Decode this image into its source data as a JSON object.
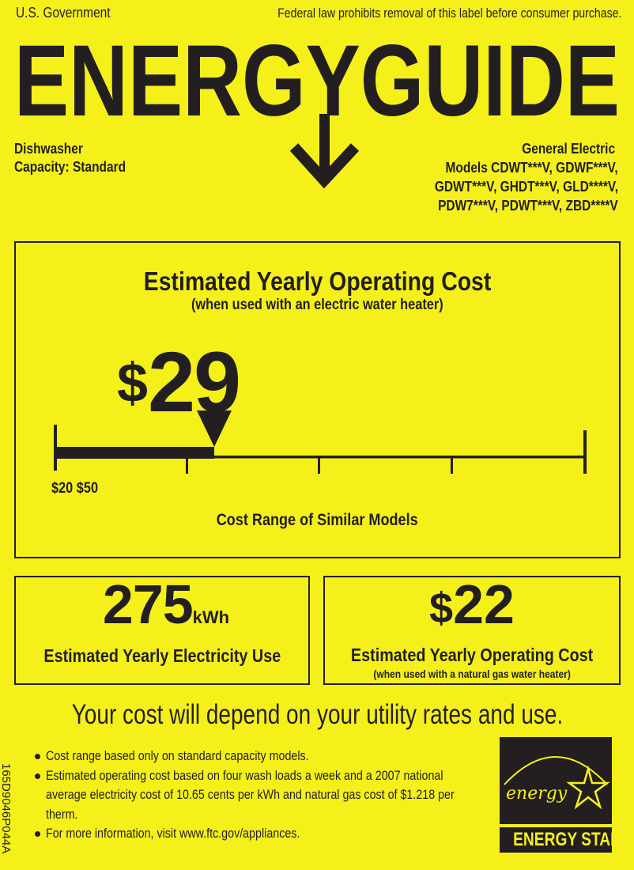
{
  "header": {
    "issuer": "U.S. Government",
    "notice": "Federal law prohibits removal of this label before consumer purchase.",
    "title": "ENERGYGUIDE"
  },
  "product": {
    "type": "Dishwasher",
    "capacity": "Capacity: Standard",
    "manufacturer": "General Electric",
    "model_lines": [
      "Models  CDWT***V, GDWF***V,",
      "GDWT***V, GHDT***V, GLD****V,",
      "PDW7***V, PDWT***V, ZBD****V"
    ]
  },
  "main_cost": {
    "title": "Estimated Yearly Operating Cost",
    "subtitle": "(when used with an electric water heater)",
    "currency": "$",
    "amount": "29",
    "value": 29,
    "range_low": 20,
    "range_high": 50,
    "range_label": "$20 $50",
    "scale_caption": "Cost Range of Similar Models"
  },
  "electricity": {
    "value": "275",
    "unit": "kWh",
    "label": "Estimated Yearly Electricity Use"
  },
  "gas_cost": {
    "currency": "$",
    "amount": "22",
    "label": "Estimated Yearly Operating Cost",
    "sublabel": "(when used with a natural gas water heater)"
  },
  "disclaimer": "Your cost will depend on your utility rates and use.",
  "bullets": [
    "Cost range based only on standard capacity models.",
    "Estimated operating cost based on four wash loads a week and a 2007 national average electricity cost of 10.65 cents per kWh and natural gas cost of $1.218 per therm.",
    "For more information, visit www.ftc.gov/appliances."
  ],
  "label_code": "165D9046P044A",
  "energy_star": {
    "script": "energy",
    "label": "ENERGY STAR"
  },
  "colors": {
    "background": "#f5f01a",
    "ink": "#231f20"
  }
}
